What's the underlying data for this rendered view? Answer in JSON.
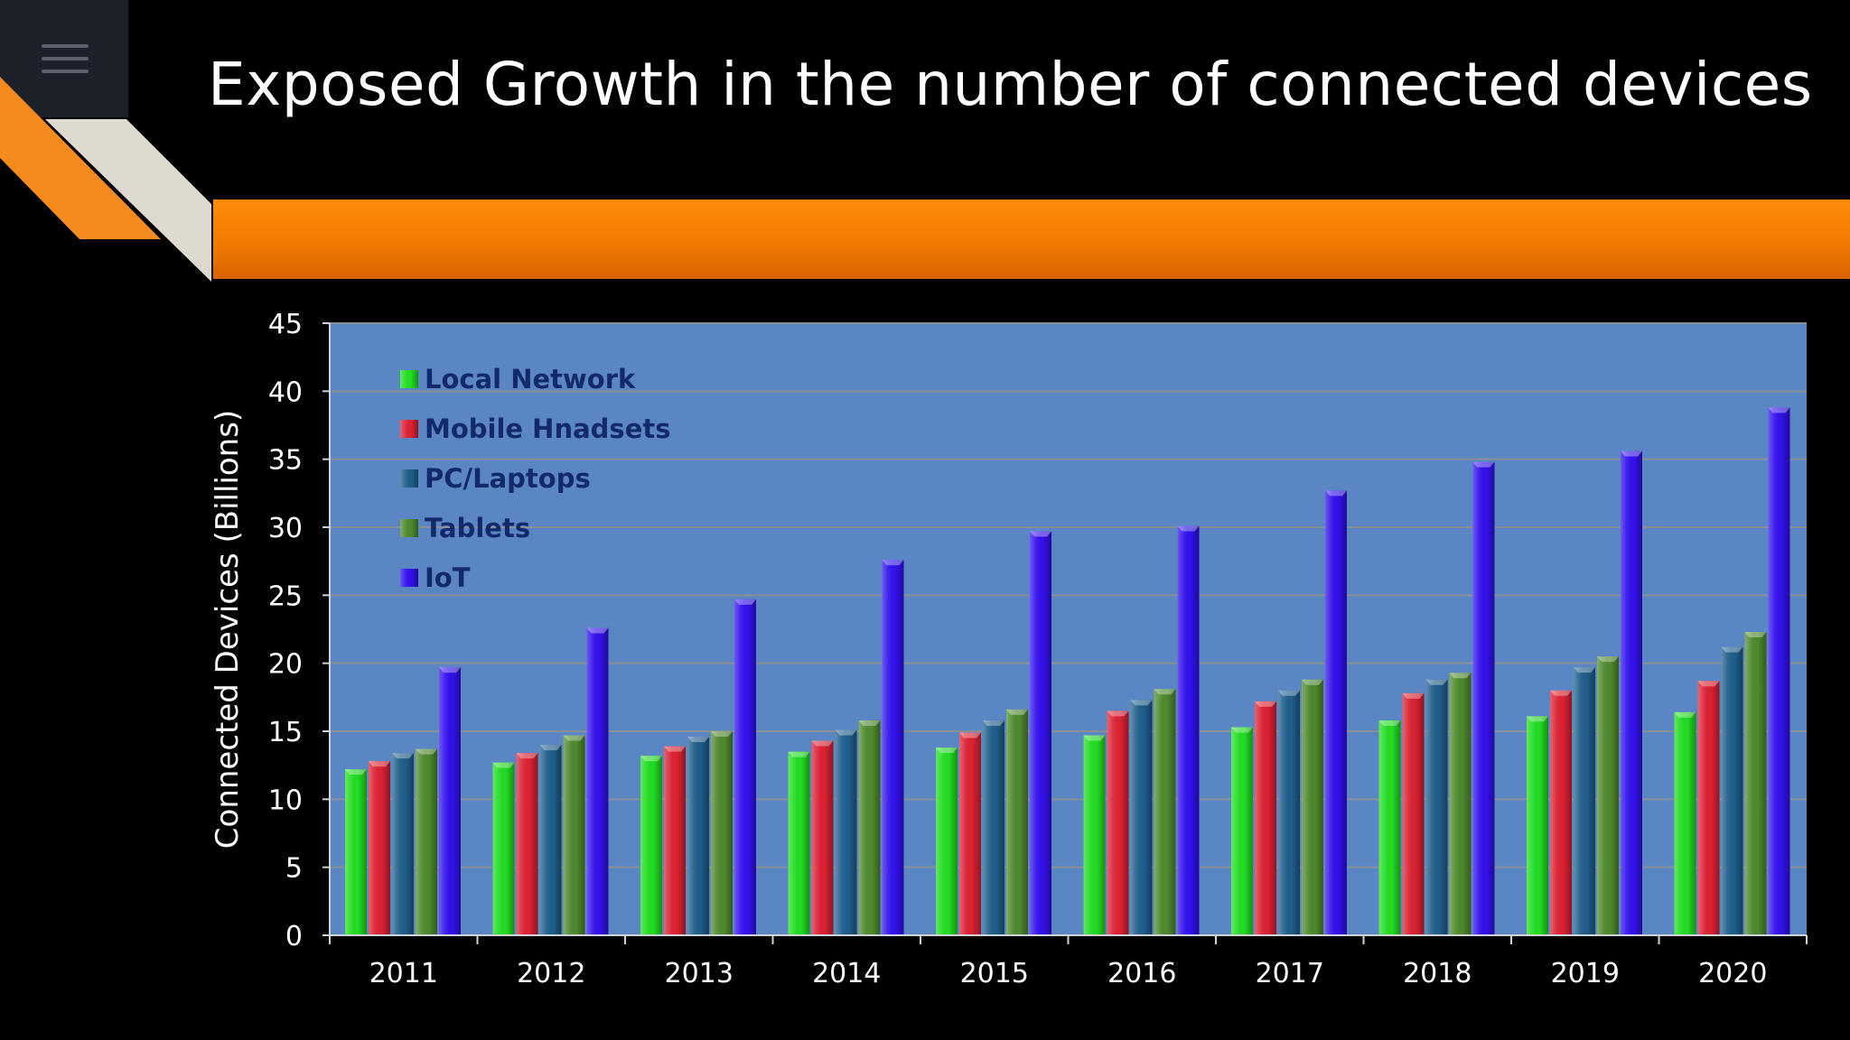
{
  "slide": {
    "title": "Exposed Growth in the number of connected devices"
  },
  "chart_data": {
    "type": "bar",
    "title": "",
    "xlabel": "",
    "ylabel": "Connected Devices (Billions)",
    "ylim": [
      0,
      45
    ],
    "yticks": [
      0,
      5,
      10,
      15,
      20,
      25,
      30,
      35,
      40,
      45
    ],
    "grid": true,
    "legend_position": "top-left",
    "plot_background": "#5a86c4",
    "categories": [
      "2011",
      "2012",
      "2013",
      "2014",
      "2015",
      "2016",
      "2017",
      "2018",
      "2019",
      "2020"
    ],
    "series": [
      {
        "name": "Local Network",
        "color": "#22dd22",
        "values": [
          12.2,
          12.7,
          13.2,
          13.5,
          13.8,
          14.7,
          15.3,
          15.8,
          16.1,
          16.4
        ]
      },
      {
        "name": "Mobile Hnadsets",
        "color": "#dd2233",
        "values": [
          12.8,
          13.4,
          13.9,
          14.3,
          14.9,
          16.5,
          17.2,
          17.8,
          18.0,
          18.7
        ]
      },
      {
        "name": "PC/Laptops",
        "color": "#1f5f8c",
        "values": [
          13.4,
          14.0,
          14.6,
          15.1,
          15.8,
          17.3,
          18.0,
          18.8,
          19.7,
          21.2
        ]
      },
      {
        "name": "Tablets",
        "color": "#4f8a2e",
        "values": [
          13.7,
          14.7,
          15.0,
          15.8,
          16.6,
          18.1,
          18.8,
          19.3,
          20.5,
          22.3
        ]
      },
      {
        "name": "IoT",
        "color": "#3311ee",
        "values": [
          19.7,
          22.6,
          24.7,
          27.6,
          29.7,
          30.1,
          32.7,
          34.8,
          35.6,
          38.8
        ]
      }
    ]
  }
}
